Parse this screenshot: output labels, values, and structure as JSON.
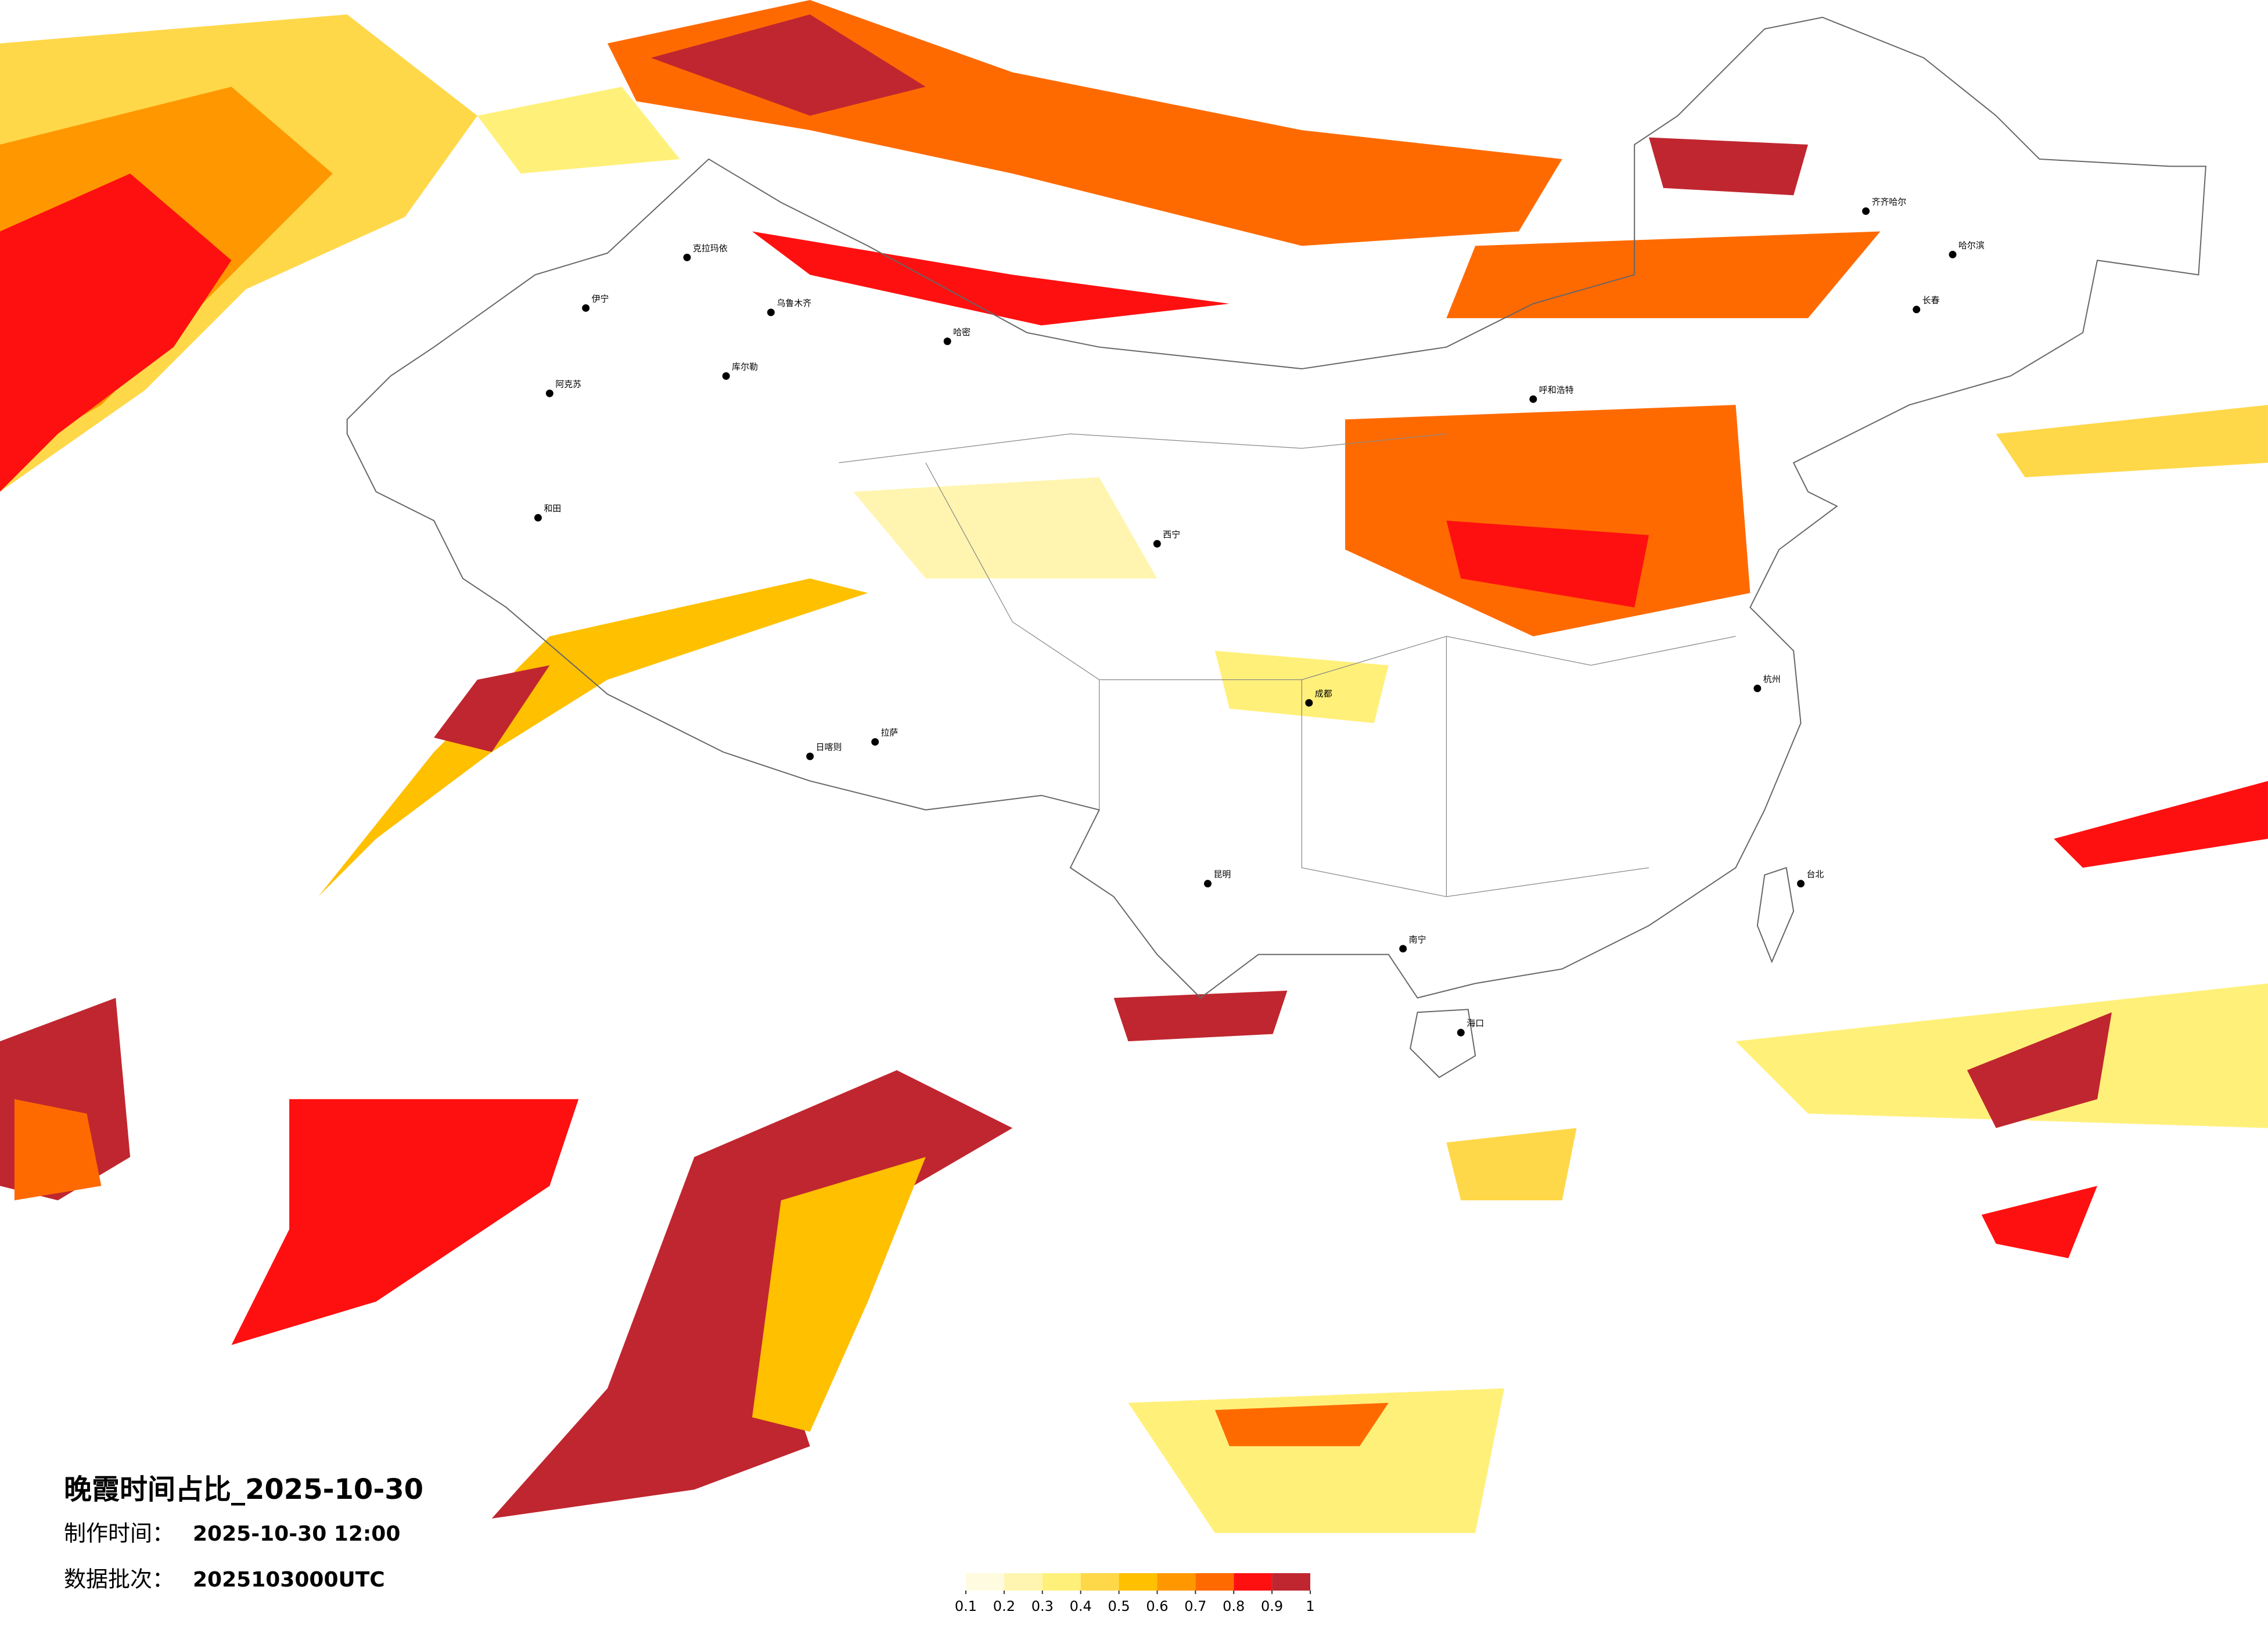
{
  "title": "晚霞时间占比_2025-10-30",
  "info": [
    {
      "label": "制作时间：",
      "value": "2025-10-30 12:00"
    },
    {
      "label": "数据批次：",
      "value": "2025103000UTC"
    }
  ],
  "legend": {
    "ticks": [
      0.1,
      0.2,
      0.3,
      0.4,
      0.5,
      0.6,
      0.7,
      0.8,
      0.9,
      1
    ],
    "colors": [
      "#fffbe0",
      "#fff5b0",
      "#fff07a",
      "#ffd84a",
      "#ffc000",
      "#ff9800",
      "#ff6a00",
      "#ff1010",
      "#c0262f"
    ]
  },
  "cities": [
    {
      "name": "克拉玛依"
    },
    {
      "name": "伊宁"
    },
    {
      "name": "乌鲁木齐"
    },
    {
      "name": "阿克苏"
    },
    {
      "name": "库尔勒"
    },
    {
      "name": "和田"
    },
    {
      "name": "哈密"
    },
    {
      "name": "拉萨"
    },
    {
      "name": "日喀则"
    },
    {
      "name": "西宁"
    },
    {
      "name": "呼和浩特"
    },
    {
      "name": "哈尔滨"
    },
    {
      "name": "长春"
    },
    {
      "name": "齐齐哈尔"
    },
    {
      "name": "成都"
    },
    {
      "name": "昆明"
    },
    {
      "name": "南宁"
    },
    {
      "name": "海口"
    },
    {
      "name": "台北"
    },
    {
      "name": "杭州"
    }
  ]
}
